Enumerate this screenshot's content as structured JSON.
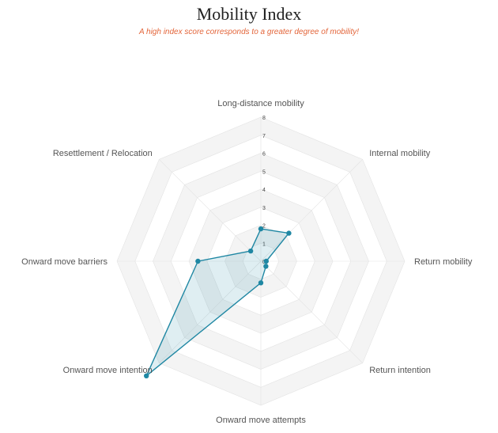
{
  "colors": {
    "series": "#1f87a3",
    "series_fill": "rgba(31,135,163,0.14)",
    "subtitle": "#e3653a",
    "band": "#f4f4f4",
    "grid": "#e3e3e3"
  },
  "chart_data": {
    "type": "radar",
    "title": "Mobility Index",
    "subtitle": "A high index score corresponds to a greater degree of mobility!",
    "axes": [
      "Long-distance mobility",
      "Internal mobility",
      "Return mobility",
      "Return intention",
      "Onward move attempts",
      "Onward move intention",
      "Onward move barriers",
      "Resettlement / Relocation"
    ],
    "range": [
      0,
      8
    ],
    "ticks": [
      0,
      1,
      2,
      3,
      4,
      5,
      6,
      7,
      8
    ],
    "grid": true,
    "series": [
      {
        "values": [
          1.8,
          2.2,
          0.3,
          0.4,
          1.2,
          9.0,
          3.5,
          0.8
        ]
      }
    ]
  }
}
